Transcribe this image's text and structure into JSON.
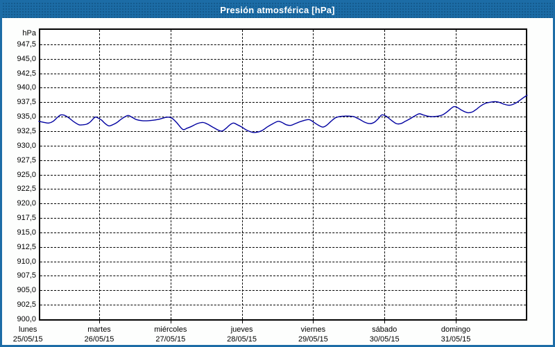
{
  "window": {
    "title": "Presión atmosférica [hPa]"
  },
  "colors": {
    "titlebar_bg": "#1c6ca6",
    "titlebar_dot": "#14598c",
    "title_text": "#ffffff",
    "window_border": "#1c6ca6",
    "content_bg": "#fdfefd",
    "plot_bg": "#ffffff",
    "plot_border": "#000000",
    "grid": "#000000",
    "axis_text": "#000000",
    "series_line": "#0000a0"
  },
  "chart_data": {
    "type": "line",
    "title": "Presión atmosférica [hPa]",
    "grid": "dashed",
    "legend": "none",
    "y_axis": {
      "unit": "hPa",
      "min": 900,
      "max": 950,
      "tick_step": 2.5,
      "decimal_style": "comma",
      "tick_labels": [
        "947,5",
        "945,0",
        "942,5",
        "940,0",
        "937,5",
        "935,0",
        "932,5",
        "930,0",
        "927,5",
        "925,0",
        "922,5",
        "920,0",
        "917,5",
        "915,0",
        "912,5",
        "910,0",
        "907,5",
        "905,0",
        "902,5",
        "900,0"
      ]
    },
    "x_axis": {
      "kind": "time",
      "hours_range_since_monday": [
        3.7,
        168
      ],
      "day_tick_hours": [
        0,
        24,
        48,
        72,
        96,
        120,
        144
      ],
      "days": [
        {
          "name": "lunes",
          "date": "25/05/15"
        },
        {
          "name": "martes",
          "date": "26/05/15"
        },
        {
          "name": "miércoles",
          "date": "27/05/15"
        },
        {
          "name": "jueves",
          "date": "28/05/15"
        },
        {
          "name": "viernes",
          "date": "29/05/15"
        },
        {
          "name": "sábado",
          "date": "30/05/15"
        },
        {
          "name": "domingo",
          "date": "31/05/15"
        }
      ]
    },
    "series": [
      {
        "name": "Presión atmosférica",
        "unit": "hPa",
        "color": "#0000a0",
        "points_hours_hpa": [
          [
            3.7,
            934.2
          ],
          [
            5.5,
            934.0
          ],
          [
            7,
            933.9
          ],
          [
            8.5,
            934.2
          ],
          [
            10,
            934.9
          ],
          [
            11.1,
            935.3
          ],
          [
            12.5,
            935.2
          ],
          [
            14,
            934.7
          ],
          [
            15.5,
            934.1
          ],
          [
            17.2,
            933.6
          ],
          [
            18.5,
            933.6
          ],
          [
            19.8,
            933.7
          ],
          [
            21,
            934.1
          ],
          [
            22.6,
            934.9
          ],
          [
            23.5,
            934.8
          ],
          [
            24.8,
            934.4
          ],
          [
            26,
            933.8
          ],
          [
            27.3,
            933.4
          ],
          [
            28.5,
            933.6
          ],
          [
            30,
            934.0
          ],
          [
            31.5,
            934.6
          ],
          [
            33.6,
            935.2
          ],
          [
            35,
            934.9
          ],
          [
            36.5,
            934.5
          ],
          [
            38.5,
            934.3
          ],
          [
            40.5,
            934.3
          ],
          [
            42.5,
            934.4
          ],
          [
            44.5,
            934.6
          ],
          [
            46.7,
            934.9
          ],
          [
            48.3,
            934.8
          ],
          [
            50,
            934.0
          ],
          [
            52.1,
            932.8
          ],
          [
            53.5,
            933.0
          ],
          [
            55,
            933.3
          ],
          [
            57,
            933.8
          ],
          [
            58.9,
            934.0
          ],
          [
            60.5,
            933.7
          ],
          [
            62.5,
            933.1
          ],
          [
            65,
            932.5
          ],
          [
            66.5,
            932.9
          ],
          [
            68,
            933.6
          ],
          [
            69.2,
            933.9
          ],
          [
            70.5,
            933.6
          ],
          [
            72,
            933.2
          ],
          [
            73.5,
            932.7
          ],
          [
            75.5,
            932.3
          ],
          [
            77,
            932.3
          ],
          [
            78.8,
            932.6
          ],
          [
            80.5,
            933.2
          ],
          [
            82.5,
            933.8
          ],
          [
            84.2,
            934.2
          ],
          [
            85.5,
            934.0
          ],
          [
            87,
            933.6
          ],
          [
            88.5,
            933.5
          ],
          [
            90,
            933.8
          ],
          [
            92,
            934.2
          ],
          [
            94.5,
            934.5
          ],
          [
            96,
            934.1
          ],
          [
            97.5,
            933.6
          ],
          [
            99.2,
            933.2
          ],
          [
            100.5,
            933.5
          ],
          [
            102,
            934.2
          ],
          [
            103.5,
            934.8
          ],
          [
            104.8,
            935.0
          ],
          [
            106.5,
            935.1
          ],
          [
            108,
            935.1
          ],
          [
            109.7,
            935.0
          ],
          [
            111,
            934.7
          ],
          [
            112.1,
            934.4
          ],
          [
            113.5,
            934.0
          ],
          [
            115.1,
            933.8
          ],
          [
            116.5,
            934.0
          ],
          [
            118,
            934.7
          ],
          [
            119.1,
            935.3
          ],
          [
            120.5,
            935.1
          ],
          [
            122,
            934.5
          ],
          [
            124,
            933.8
          ],
          [
            125.5,
            933.8
          ],
          [
            127,
            934.2
          ],
          [
            128.5,
            934.6
          ],
          [
            130.1,
            935.1
          ],
          [
            131.7,
            935.5
          ],
          [
            133,
            935.3
          ],
          [
            134.5,
            935.1
          ],
          [
            136,
            935.0
          ],
          [
            138,
            935.1
          ],
          [
            139.5,
            935.3
          ],
          [
            141,
            935.8
          ],
          [
            143.2,
            936.7
          ],
          [
            144.5,
            936.6
          ],
          [
            146,
            936.1
          ],
          [
            147.9,
            935.7
          ],
          [
            149.5,
            935.8
          ],
          [
            151,
            936.3
          ],
          [
            152.5,
            936.9
          ],
          [
            154,
            937.3
          ],
          [
            155.6,
            937.5
          ],
          [
            157.2,
            937.6
          ],
          [
            158.5,
            937.5
          ],
          [
            160,
            937.2
          ],
          [
            161.4,
            937.0
          ],
          [
            162.5,
            937.0
          ],
          [
            164,
            937.3
          ],
          [
            165.5,
            937.8
          ],
          [
            166.8,
            938.3
          ],
          [
            168,
            938.7
          ]
        ]
      }
    ]
  }
}
